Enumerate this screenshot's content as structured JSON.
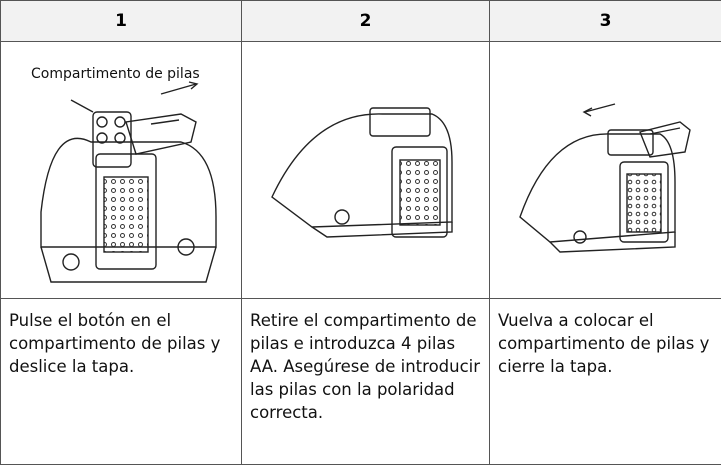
{
  "table": {
    "header": [
      "1",
      "2",
      "3"
    ],
    "caption": "Compartimento de pilas",
    "steps": [
      "Pulse el botón en el compartimento de pilas y deslice la tapa.",
      "Retire el compartimento de pilas e introduzca 4 pilas AA. Asegúrese de introducir las pilas con la polaridad correcta.",
      "Vuelva a colocar el compartimento de pilas y cierre la tapa."
    ]
  }
}
